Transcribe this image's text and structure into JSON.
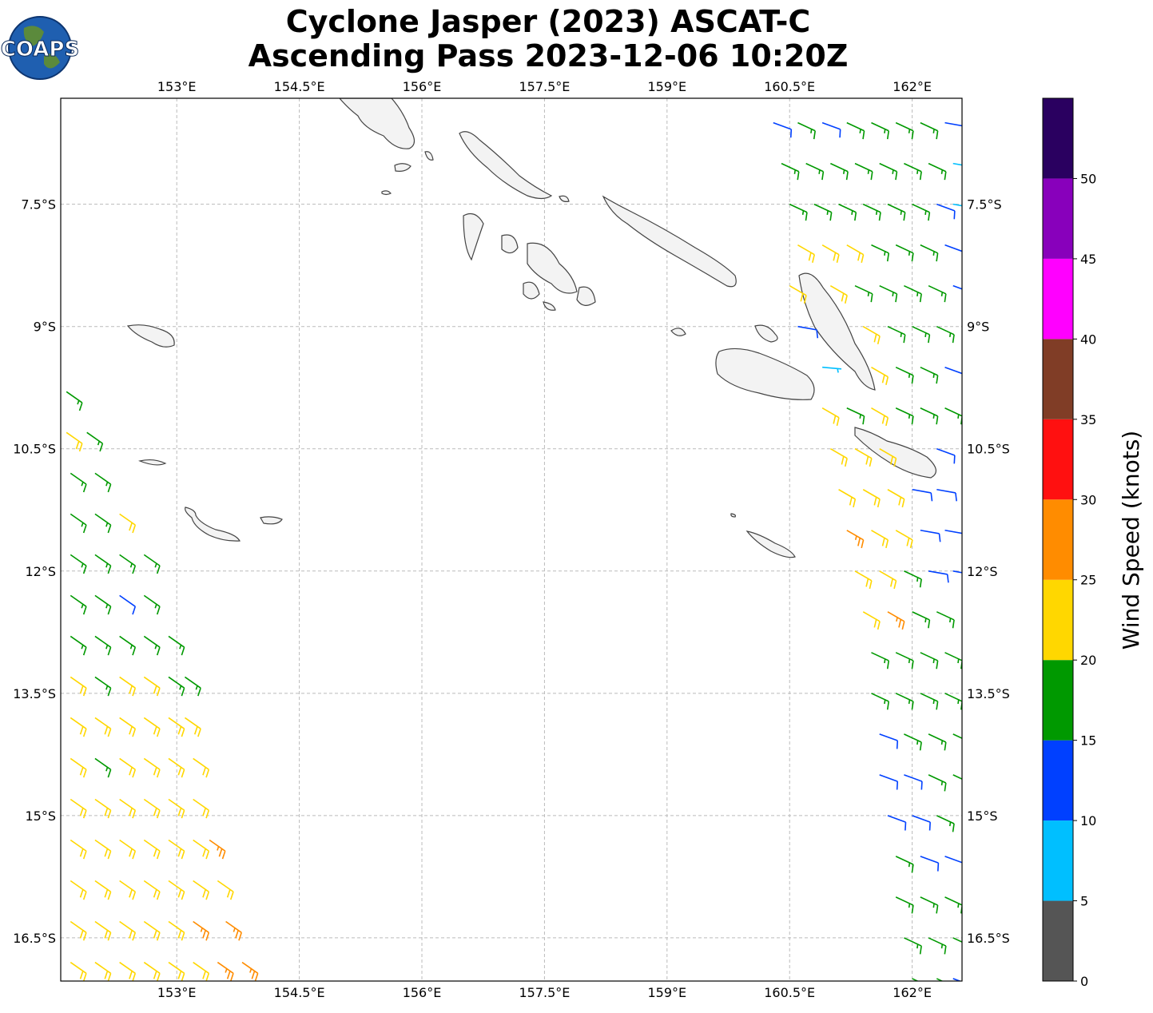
{
  "map": {
    "title": [
      "Cyclone Jasper (2023) ASCAT-C",
      "Ascending Pass 2023-12-06 10:20Z"
    ],
    "logo": "COAPS",
    "lon_range": [
      151.58,
      162.61
    ],
    "lat_range": [
      -6.2,
      -17.03
    ],
    "lon_ticks": [
      {
        "value": 153,
        "label": "153°E"
      },
      {
        "value": 154.5,
        "label": "154.5°E"
      },
      {
        "value": 156,
        "label": "156°E"
      },
      {
        "value": 157.5,
        "label": "157.5°E"
      },
      {
        "value": 159,
        "label": "159°E"
      },
      {
        "value": 160.5,
        "label": "160.5°E"
      },
      {
        "value": 162,
        "label": "162°E"
      }
    ],
    "lat_ticks": [
      {
        "value": -7.5,
        "label": "7.5°S"
      },
      {
        "value": -9,
        "label": "9°S"
      },
      {
        "value": -10.5,
        "label": "10.5°S"
      },
      {
        "value": -12,
        "label": "12°S"
      },
      {
        "value": -13.5,
        "label": "13.5°S"
      },
      {
        "value": -15,
        "label": "15°S"
      },
      {
        "value": -16.5,
        "label": "16.5°S"
      }
    ],
    "colorbar": {
      "label": "Wind Speed (knots)",
      "lim": [
        0,
        55
      ],
      "bounds": [
        0,
        5,
        10,
        15,
        20,
        25,
        30,
        35,
        40,
        45,
        50,
        55
      ],
      "ticks": [
        0,
        5,
        10,
        15,
        20,
        25,
        30,
        35,
        40,
        45,
        50
      ],
      "colors": [
        "#555555",
        "#00bfff",
        "#0040ff",
        "#009900",
        "#ffd700",
        "#ff8c00",
        "#ff1010",
        "#803d26",
        "#ff00ff",
        "#8800bb",
        "#2a0060"
      ]
    },
    "barbs": [
      [
        151.65,
        -9.8,
        17,
        125
      ],
      [
        151.65,
        -10.3,
        22,
        125
      ],
      [
        151.9,
        -10.3,
        17,
        125
      ],
      [
        151.7,
        -10.8,
        17,
        125
      ],
      [
        152.0,
        -10.8,
        17,
        125
      ],
      [
        151.7,
        -11.3,
        17,
        125
      ],
      [
        152.0,
        -11.3,
        17,
        125
      ],
      [
        152.3,
        -11.3,
        22,
        125
      ],
      [
        151.7,
        -11.8,
        17,
        125
      ],
      [
        152.0,
        -11.8,
        17,
        125
      ],
      [
        152.3,
        -11.8,
        17,
        125
      ],
      [
        152.6,
        -11.8,
        17,
        125
      ],
      [
        151.7,
        -12.3,
        17,
        125
      ],
      [
        152.0,
        -12.3,
        17,
        125
      ],
      [
        152.3,
        -12.3,
        12,
        125
      ],
      [
        152.6,
        -12.3,
        17,
        125
      ],
      [
        151.7,
        -12.8,
        17,
        125
      ],
      [
        152.0,
        -12.8,
        17,
        125
      ],
      [
        152.3,
        -12.8,
        17,
        125
      ],
      [
        152.6,
        -12.8,
        17,
        125
      ],
      [
        152.9,
        -12.8,
        17,
        125
      ],
      [
        151.7,
        -13.3,
        22,
        125
      ],
      [
        152.0,
        -13.3,
        17,
        125
      ],
      [
        152.3,
        -13.3,
        22,
        125
      ],
      [
        152.6,
        -13.3,
        22,
        125
      ],
      [
        152.9,
        -13.3,
        17,
        125
      ],
      [
        153.1,
        -13.3,
        17,
        125
      ],
      [
        151.7,
        -13.8,
        22,
        125
      ],
      [
        152.0,
        -13.8,
        22,
        125
      ],
      [
        152.3,
        -13.8,
        22,
        125
      ],
      [
        152.6,
        -13.8,
        22,
        125
      ],
      [
        152.9,
        -13.8,
        22,
        125
      ],
      [
        153.1,
        -13.8,
        22,
        125
      ],
      [
        151.7,
        -14.3,
        22,
        125
      ],
      [
        152.0,
        -14.3,
        17,
        125
      ],
      [
        152.3,
        -14.3,
        22,
        125
      ],
      [
        152.6,
        -14.3,
        22,
        125
      ],
      [
        152.9,
        -14.3,
        22,
        125
      ],
      [
        153.2,
        -14.3,
        22,
        125
      ],
      [
        151.7,
        -14.8,
        22,
        125
      ],
      [
        152.0,
        -14.8,
        22,
        125
      ],
      [
        152.3,
        -14.8,
        22,
        125
      ],
      [
        152.6,
        -14.8,
        22,
        125
      ],
      [
        152.9,
        -14.8,
        22,
        125
      ],
      [
        153.2,
        -14.8,
        22,
        125
      ],
      [
        151.7,
        -15.3,
        22,
        125
      ],
      [
        152.0,
        -15.3,
        22,
        125
      ],
      [
        152.3,
        -15.3,
        22,
        125
      ],
      [
        152.6,
        -15.3,
        22,
        125
      ],
      [
        152.9,
        -15.3,
        22,
        125
      ],
      [
        153.2,
        -15.3,
        22,
        125
      ],
      [
        153.4,
        -15.3,
        27,
        125
      ],
      [
        151.7,
        -15.8,
        22,
        125
      ],
      [
        152.0,
        -15.8,
        22,
        125
      ],
      [
        152.3,
        -15.8,
        22,
        125
      ],
      [
        152.6,
        -15.8,
        22,
        125
      ],
      [
        152.9,
        -15.8,
        22,
        125
      ],
      [
        153.2,
        -15.8,
        22,
        125
      ],
      [
        153.5,
        -15.8,
        22,
        125
      ],
      [
        151.7,
        -16.3,
        22,
        125
      ],
      [
        152.0,
        -16.3,
        22,
        125
      ],
      [
        152.3,
        -16.3,
        22,
        125
      ],
      [
        152.6,
        -16.3,
        22,
        125
      ],
      [
        152.9,
        -16.3,
        22,
        125
      ],
      [
        153.2,
        -16.3,
        27,
        125
      ],
      [
        153.6,
        -16.3,
        27,
        125
      ],
      [
        151.7,
        -16.8,
        22,
        125
      ],
      [
        152.0,
        -16.8,
        22,
        125
      ],
      [
        152.3,
        -16.8,
        22,
        125
      ],
      [
        152.6,
        -16.8,
        22,
        125
      ],
      [
        152.9,
        -16.8,
        22,
        125
      ],
      [
        153.2,
        -16.8,
        22,
        125
      ],
      [
        153.5,
        -16.8,
        27,
        125
      ],
      [
        153.8,
        -16.8,
        27,
        125
      ],
      [
        160.3,
        -6.5,
        12,
        110
      ],
      [
        160.6,
        -6.5,
        17,
        115
      ],
      [
        160.9,
        -6.5,
        12,
        110
      ],
      [
        161.2,
        -6.5,
        17,
        115
      ],
      [
        161.5,
        -6.5,
        17,
        115
      ],
      [
        161.8,
        -6.5,
        17,
        115
      ],
      [
        162.1,
        -6.5,
        17,
        115
      ],
      [
        162.4,
        -6.5,
        12,
        100
      ],
      [
        160.4,
        -7.0,
        17,
        115
      ],
      [
        160.7,
        -7.0,
        17,
        115
      ],
      [
        161.0,
        -7.0,
        17,
        115
      ],
      [
        161.3,
        -7.0,
        17,
        115
      ],
      [
        161.6,
        -7.0,
        17,
        115
      ],
      [
        161.9,
        -7.0,
        17,
        115
      ],
      [
        162.2,
        -7.0,
        17,
        115
      ],
      [
        162.5,
        -7.0,
        7,
        100
      ],
      [
        160.5,
        -7.5,
        17,
        115
      ],
      [
        160.8,
        -7.5,
        17,
        115
      ],
      [
        161.1,
        -7.5,
        17,
        115
      ],
      [
        161.4,
        -7.5,
        17,
        115
      ],
      [
        161.7,
        -7.5,
        17,
        115
      ],
      [
        162.0,
        -7.5,
        17,
        115
      ],
      [
        162.3,
        -7.5,
        12,
        110
      ],
      [
        162.5,
        -7.5,
        7,
        100
      ],
      [
        160.6,
        -8.0,
        22,
        120
      ],
      [
        160.9,
        -8.0,
        22,
        120
      ],
      [
        161.2,
        -8.0,
        22,
        120
      ],
      [
        161.5,
        -8.0,
        17,
        115
      ],
      [
        161.8,
        -8.0,
        17,
        115
      ],
      [
        162.1,
        -8.0,
        17,
        115
      ],
      [
        162.4,
        -8.0,
        12,
        110
      ],
      [
        160.5,
        -8.5,
        22,
        120
      ],
      [
        161.0,
        -8.5,
        22,
        120
      ],
      [
        161.3,
        -8.5,
        17,
        115
      ],
      [
        161.6,
        -8.5,
        17,
        115
      ],
      [
        161.9,
        -8.5,
        17,
        115
      ],
      [
        162.2,
        -8.5,
        17,
        115
      ],
      [
        162.5,
        -8.5,
        12,
        110
      ],
      [
        160.6,
        -9.0,
        12,
        100
      ],
      [
        161.4,
        -9.0,
        22,
        120
      ],
      [
        161.7,
        -9.0,
        17,
        115
      ],
      [
        162.0,
        -9.0,
        17,
        115
      ],
      [
        162.3,
        -9.0,
        17,
        115
      ],
      [
        160.9,
        -9.5,
        7,
        95
      ],
      [
        161.5,
        -9.5,
        22,
        120
      ],
      [
        161.8,
        -9.5,
        17,
        115
      ],
      [
        162.1,
        -9.5,
        17,
        115
      ],
      [
        162.4,
        -9.5,
        12,
        110
      ],
      [
        160.9,
        -10.0,
        22,
        120
      ],
      [
        161.2,
        -10.0,
        17,
        115
      ],
      [
        161.5,
        -10.0,
        22,
        120
      ],
      [
        161.8,
        -10.0,
        17,
        115
      ],
      [
        162.1,
        -10.0,
        17,
        115
      ],
      [
        162.4,
        -10.0,
        17,
        115
      ],
      [
        161.0,
        -10.5,
        22,
        120
      ],
      [
        161.3,
        -10.5,
        22,
        120
      ],
      [
        161.6,
        -10.5,
        22,
        120
      ],
      [
        162.3,
        -10.5,
        12,
        110
      ],
      [
        161.1,
        -11.0,
        22,
        120
      ],
      [
        161.4,
        -11.0,
        22,
        120
      ],
      [
        161.7,
        -11.0,
        22,
        120
      ],
      [
        162.0,
        -11.0,
        12,
        100
      ],
      [
        162.3,
        -11.0,
        12,
        100
      ],
      [
        161.2,
        -11.5,
        27,
        120
      ],
      [
        161.5,
        -11.5,
        22,
        120
      ],
      [
        161.8,
        -11.5,
        22,
        120
      ],
      [
        162.1,
        -11.5,
        12,
        100
      ],
      [
        162.4,
        -11.5,
        12,
        100
      ],
      [
        161.3,
        -12.0,
        22,
        120
      ],
      [
        161.6,
        -12.0,
        22,
        120
      ],
      [
        161.9,
        -12.0,
        17,
        115
      ],
      [
        162.2,
        -12.0,
        12,
        100
      ],
      [
        162.5,
        -12.0,
        12,
        100
      ],
      [
        161.4,
        -12.5,
        22,
        120
      ],
      [
        161.7,
        -12.5,
        27,
        120
      ],
      [
        162.0,
        -12.5,
        17,
        115
      ],
      [
        162.3,
        -12.5,
        17,
        115
      ],
      [
        161.5,
        -13.0,
        17,
        115
      ],
      [
        161.8,
        -13.0,
        17,
        115
      ],
      [
        162.1,
        -13.0,
        17,
        115
      ],
      [
        162.4,
        -13.0,
        17,
        115
      ],
      [
        161.5,
        -13.5,
        17,
        115
      ],
      [
        161.8,
        -13.5,
        17,
        115
      ],
      [
        162.1,
        -13.5,
        17,
        115
      ],
      [
        162.4,
        -13.5,
        17,
        115
      ],
      [
        161.6,
        -14.0,
        12,
        110
      ],
      [
        161.9,
        -14.0,
        17,
        115
      ],
      [
        162.2,
        -14.0,
        17,
        115
      ],
      [
        162.5,
        -14.0,
        17,
        115
      ],
      [
        161.6,
        -14.5,
        12,
        110
      ],
      [
        161.9,
        -14.5,
        12,
        110
      ],
      [
        162.2,
        -14.5,
        17,
        115
      ],
      [
        162.5,
        -14.5,
        17,
        115
      ],
      [
        161.7,
        -15.0,
        12,
        110
      ],
      [
        162.0,
        -15.0,
        12,
        110
      ],
      [
        162.3,
        -15.0,
        17,
        115
      ],
      [
        161.8,
        -15.5,
        17,
        115
      ],
      [
        162.1,
        -15.5,
        12,
        110
      ],
      [
        162.4,
        -15.5,
        12,
        110
      ],
      [
        161.8,
        -16.0,
        17,
        115
      ],
      [
        162.1,
        -16.0,
        17,
        115
      ],
      [
        162.4,
        -16.0,
        17,
        115
      ],
      [
        161.9,
        -16.5,
        17,
        115
      ],
      [
        162.2,
        -16.5,
        17,
        115
      ],
      [
        162.5,
        -16.5,
        17,
        115
      ],
      [
        162.0,
        -17.0,
        17,
        115
      ],
      [
        162.3,
        -17.0,
        17,
        115
      ],
      [
        162.5,
        -17.0,
        12,
        110
      ]
    ]
  }
}
